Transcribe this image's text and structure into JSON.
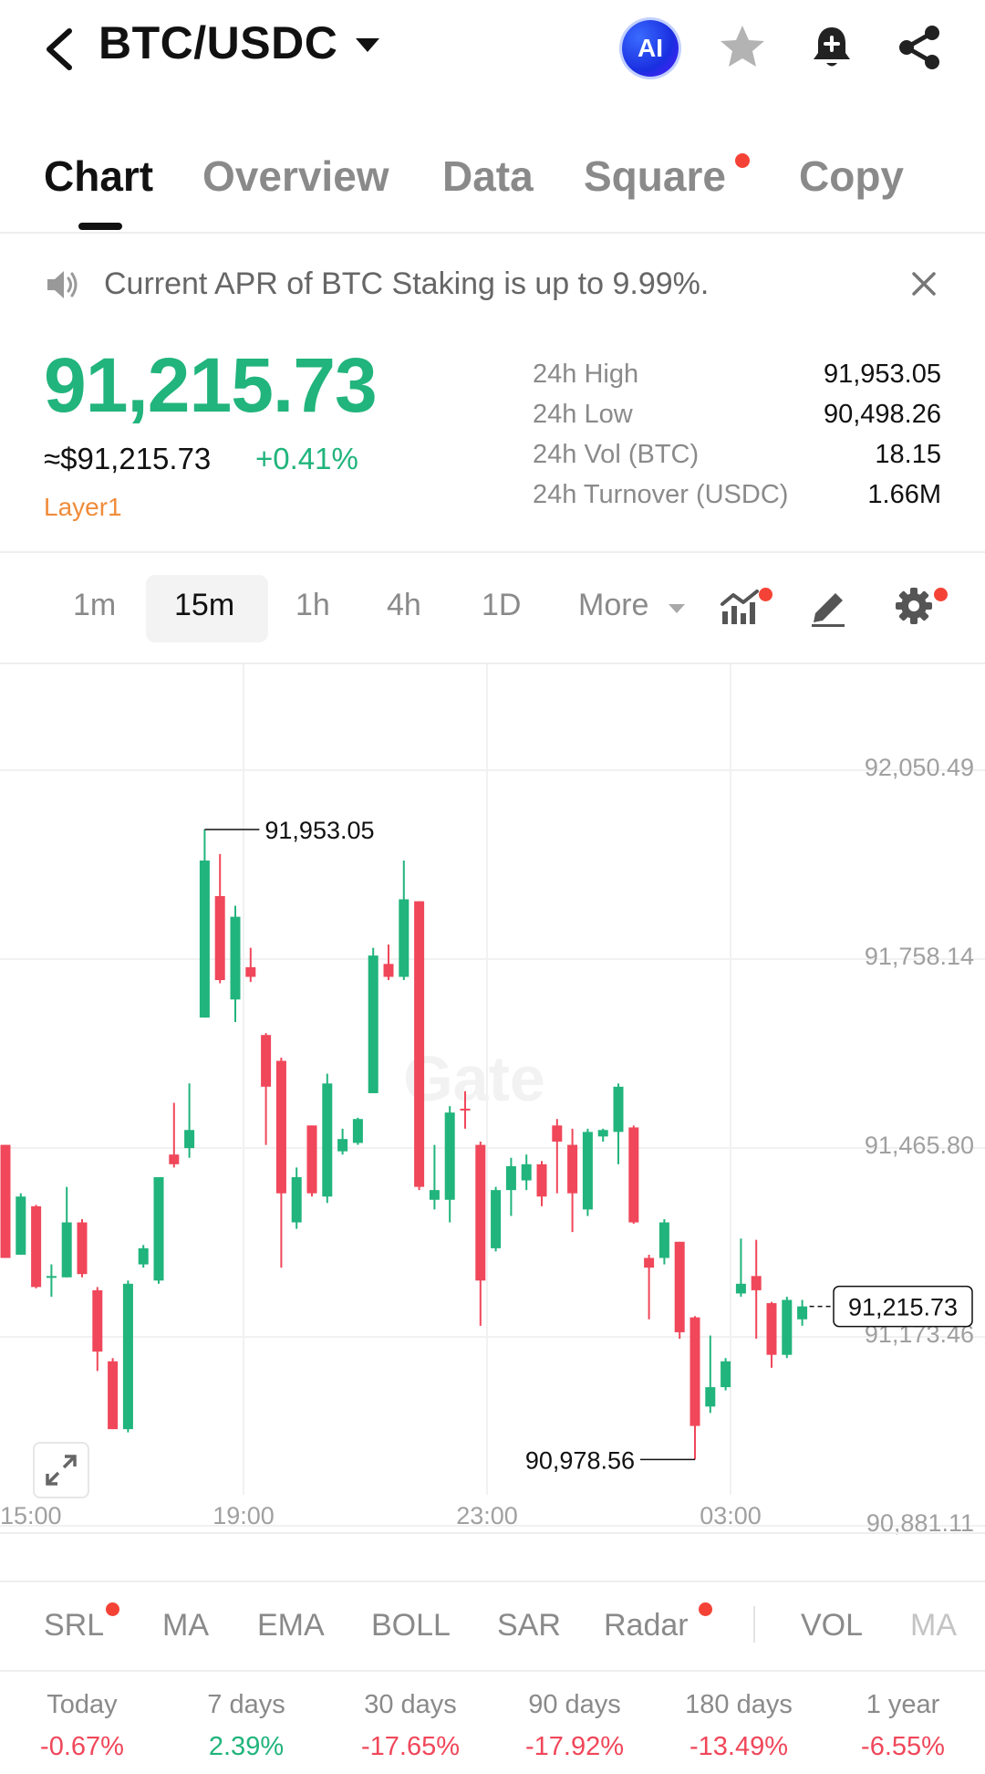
{
  "header": {
    "pair": "BTC/USDC",
    "ai_label": "AI",
    "icons": [
      "back-arrow-icon",
      "dropdown-caret-icon",
      "star-icon",
      "bell-plus-icon",
      "share-icon"
    ]
  },
  "tabs": [
    {
      "label": "Chart",
      "active": true
    },
    {
      "label": "Overview",
      "active": false
    },
    {
      "label": "Data",
      "active": false
    },
    {
      "label": "Square",
      "active": false,
      "dot": true
    },
    {
      "label": "Copy",
      "active": false
    }
  ],
  "announcement": {
    "text": "Current APR of BTC Staking is up to 9.99%."
  },
  "price": {
    "last": "91,215.73",
    "usd": "≈$91,215.73",
    "change": "+0.41%",
    "tag": "Layer1"
  },
  "stats": [
    {
      "label": "24h High",
      "value": "91,953.05"
    },
    {
      "label": "24h Low",
      "value": "90,498.26"
    },
    {
      "label": "24h Vol (BTC)",
      "value": "18.15"
    },
    {
      "label": "24h Turnover (USDC)",
      "value": "1.66M"
    }
  ],
  "timeframes": {
    "options": [
      "1m",
      "15m",
      "1h",
      "4h",
      "1D"
    ],
    "selected": "15m",
    "more_label": "More"
  },
  "colors": {
    "up": "#21b47c",
    "down": "#f0475a",
    "accent_orange": "#f08c3a",
    "dot_red": "#f44336"
  },
  "chart_data": {
    "type": "candlestick",
    "watermark": "Gate",
    "price_axis": [
      "92,050.49",
      "91,758.14",
      "91,465.80",
      "91,173.46",
      "90,881.11"
    ],
    "time_axis": [
      "15:00",
      "19:00",
      "23:00",
      "03:00"
    ],
    "high_marker": "91,953.05",
    "low_marker": "90,978.56",
    "last_price_tag": "91,215.73",
    "ylim": [
      90881.11,
      92050.49
    ],
    "candles": [
      {
        "o": 91465,
        "c": 91290,
        "h": 91465,
        "l": 91290
      },
      {
        "o": 91295,
        "c": 91385,
        "h": 91390,
        "l": 91295
      },
      {
        "o": 91370,
        "c": 91245,
        "h": 91372,
        "l": 91243
      },
      {
        "o": 91260,
        "c": 91262,
        "h": 91280,
        "l": 91230
      },
      {
        "o": 91260,
        "c": 91345,
        "h": 91400,
        "l": 91260
      },
      {
        "o": 91345,
        "c": 91265,
        "h": 91350,
        "l": 91260
      },
      {
        "o": 91240,
        "c": 91145,
        "h": 91245,
        "l": 91115
      },
      {
        "o": 91130,
        "c": 91025,
        "h": 91135,
        "l": 91025
      },
      {
        "o": 91025,
        "c": 91250,
        "h": 91255,
        "l": 91020
      },
      {
        "o": 91280,
        "c": 91305,
        "h": 91310,
        "l": 91275
      },
      {
        "o": 91255,
        "c": 91415,
        "h": 91415,
        "l": 91250
      },
      {
        "o": 91450,
        "c": 91435,
        "h": 91530,
        "l": 91430
      },
      {
        "o": 91460,
        "c": 91488,
        "h": 91560,
        "l": 91445
      },
      {
        "o": 91662,
        "c": 91905,
        "h": 91953,
        "l": 91662
      },
      {
        "o": 91850,
        "c": 91720,
        "h": 91915,
        "l": 91715
      },
      {
        "o": 91690,
        "c": 91818,
        "h": 91835,
        "l": 91655
      },
      {
        "o": 91740,
        "c": 91725,
        "h": 91770,
        "l": 91717
      },
      {
        "o": 91635,
        "c": 91555,
        "h": 91638,
        "l": 91465
      },
      {
        "o": 91595,
        "c": 91390,
        "h": 91600,
        "l": 91275
      },
      {
        "o": 91345,
        "c": 91415,
        "h": 91430,
        "l": 91335
      },
      {
        "o": 91495,
        "c": 91390,
        "h": 91495,
        "l": 91385
      },
      {
        "o": 91385,
        "c": 91560,
        "h": 91575,
        "l": 91375
      },
      {
        "o": 91455,
        "c": 91474,
        "h": 91490,
        "l": 91450
      },
      {
        "o": 91468,
        "c": 91505,
        "h": 91507,
        "l": 91465
      },
      {
        "o": 91545,
        "c": 91758,
        "h": 91770,
        "l": 91545
      },
      {
        "o": 91745,
        "c": 91725,
        "h": 91775,
        "l": 91720
      },
      {
        "o": 91725,
        "c": 91845,
        "h": 91905,
        "l": 91720
      },
      {
        "o": 91842,
        "c": 91400,
        "h": 91842,
        "l": 91395
      },
      {
        "o": 91380,
        "c": 91395,
        "h": 91465,
        "l": 91365
      },
      {
        "o": 91380,
        "c": 91515,
        "h": 91525,
        "l": 91345
      },
      {
        "o": 91521,
        "c": 91519,
        "h": 91548,
        "l": 91490
      },
      {
        "o": 91465,
        "c": 91255,
        "h": 91470,
        "l": 91185
      },
      {
        "o": 91305,
        "c": 91395,
        "h": 91400,
        "l": 91300
      },
      {
        "o": 91395,
        "c": 91432,
        "h": 91445,
        "l": 91355
      },
      {
        "o": 91410,
        "c": 91435,
        "h": 91450,
        "l": 91395
      },
      {
        "o": 91435,
        "c": 91385,
        "h": 91440,
        "l": 91370
      },
      {
        "o": 91495,
        "c": 91470,
        "h": 91505,
        "l": 91390
      },
      {
        "o": 91465,
        "c": 91390,
        "h": 91490,
        "l": 91330
      },
      {
        "o": 91365,
        "c": 91485,
        "h": 91490,
        "l": 91355
      },
      {
        "o": 91478,
        "c": 91488,
        "h": 91490,
        "l": 91470
      },
      {
        "o": 91485,
        "c": 91555,
        "h": 91560,
        "l": 91435
      },
      {
        "o": 91492,
        "c": 91345,
        "h": 91495,
        "l": 91343
      },
      {
        "o": 91290,
        "c": 91275,
        "h": 91295,
        "l": 91195
      },
      {
        "o": 91290,
        "c": 91345,
        "h": 91350,
        "l": 91280
      },
      {
        "o": 91315,
        "c": 91175,
        "h": 91315,
        "l": 91165
      },
      {
        "o": 91198,
        "c": 91030,
        "h": 91200,
        "l": 90978
      },
      {
        "o": 91060,
        "c": 91090,
        "h": 91170,
        "l": 91050
      },
      {
        "o": 91090,
        "c": 91130,
        "h": 91135,
        "l": 91085
      },
      {
        "o": 91235,
        "c": 91250,
        "h": 91320,
        "l": 91230
      },
      {
        "o": 91262,
        "c": 91240,
        "h": 91318,
        "l": 91165
      },
      {
        "o": 91220,
        "c": 91140,
        "h": 91222,
        "l": 91120
      },
      {
        "o": 91140,
        "c": 91225,
        "h": 91230,
        "l": 91135
      },
      {
        "o": 91195,
        "c": 91215,
        "h": 91225,
        "l": 91185
      }
    ]
  },
  "indicators": {
    "main": [
      {
        "label": "SRL",
        "dot": true
      },
      {
        "label": "MA",
        "dot": false
      },
      {
        "label": "EMA",
        "dot": false
      },
      {
        "label": "BOLL",
        "dot": false
      },
      {
        "label": "SAR",
        "dot": false
      },
      {
        "label": "Radar",
        "dot": true
      }
    ],
    "sub": [
      {
        "label": "VOL"
      },
      {
        "label": "MA"
      }
    ]
  },
  "performance": [
    {
      "label": "Today",
      "value": "-0.67%",
      "dir": "down"
    },
    {
      "label": "7 days",
      "value": "2.39%",
      "dir": "up"
    },
    {
      "label": "30 days",
      "value": "-17.65%",
      "dir": "down"
    },
    {
      "label": "90 days",
      "value": "-17.92%",
      "dir": "down"
    },
    {
      "label": "180 days",
      "value": "-13.49%",
      "dir": "down"
    },
    {
      "label": "1 year",
      "value": "-6.55%",
      "dir": "down"
    }
  ]
}
